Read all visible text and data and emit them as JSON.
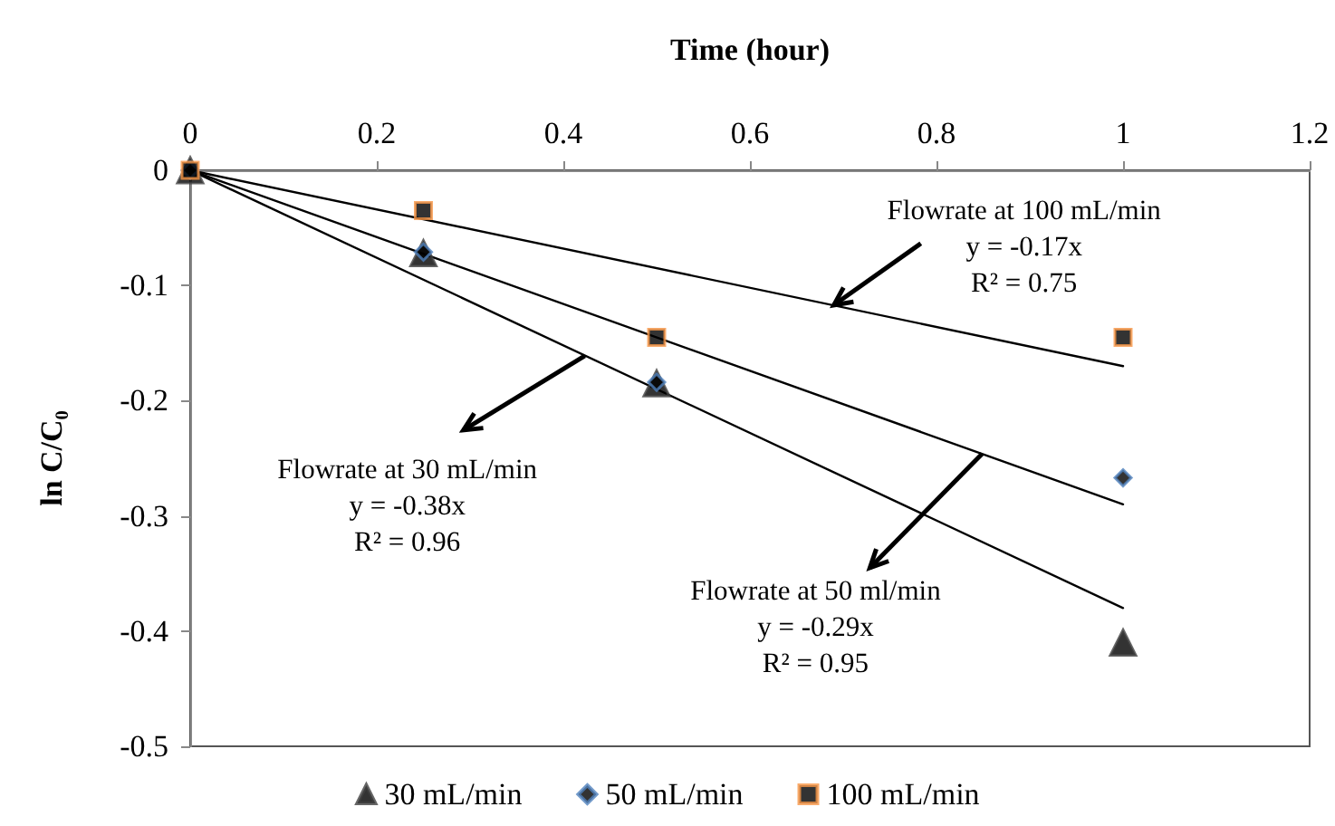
{
  "chart_data": {
    "type": "scatter",
    "xlabel": "Time (hour)",
    "ylabel": "ln C/C₀",
    "xlim": [
      0,
      1.2
    ],
    "xticks": [
      0,
      0.2,
      0.4,
      0.6,
      0.8,
      1,
      1.2
    ],
    "ylim": [
      -0.5,
      0
    ],
    "yticks": [
      -0.5,
      -0.4,
      -0.3,
      -0.2,
      -0.1,
      0
    ],
    "grid": false,
    "legend": "bottom",
    "series": [
      {
        "name": "30 mL/min",
        "marker": "triangle",
        "color": "#404040",
        "x": [
          0,
          0.25,
          0.5,
          1
        ],
        "values": [
          0,
          -0.072,
          -0.185,
          -0.41
        ]
      },
      {
        "name": "50 mL/min",
        "marker": "diamond",
        "color": "#4f81bd",
        "x": [
          0,
          0.25,
          0.5,
          1
        ],
        "values": [
          0,
          -0.071,
          -0.184,
          -0.267
        ]
      },
      {
        "name": "100 mL/min",
        "marker": "square",
        "color": "#f79646",
        "x": [
          0,
          0.25,
          0.5,
          1
        ],
        "values": [
          0,
          -0.035,
          -0.145,
          -0.145
        ]
      },
      {
        "type": "line",
        "marker": "none",
        "color": "#000000",
        "x": [
          0,
          1
        ],
        "values": [
          0,
          -0.17
        ]
      },
      {
        "type": "line",
        "marker": "none",
        "color": "#000000",
        "x": [
          0,
          1
        ],
        "values": [
          0,
          -0.38
        ]
      },
      {
        "type": "line",
        "marker": "none",
        "color": "#000000",
        "x": [
          0,
          1
        ],
        "values": [
          0,
          -0.29
        ]
      }
    ],
    "annotations": [
      {
        "text": "Flowrate at 100 mL/min\ny = -0.17x\nR² = 0.75",
        "x": 0.69,
        "y": -0.117
      },
      {
        "text": "Flowrate at 30 mL/min\ny = -0.38x\nR² = 0.96",
        "x": 0.423,
        "y": -0.161
      },
      {
        "text": "Flowrate at 50 ml/min\ny = -0.29x\nR² = 0.95",
        "x": 0.849,
        "y": -0.246
      }
    ]
  }
}
